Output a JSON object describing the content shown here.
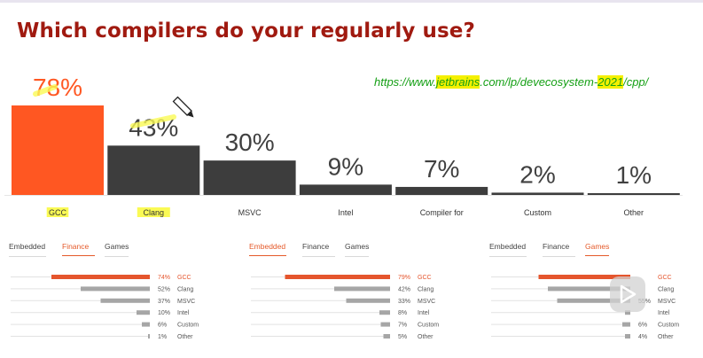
{
  "slide": {
    "title": "Which compilers do your regularly use?",
    "url_segments": [
      {
        "text": "https://www.",
        "hl": false
      },
      {
        "text": "jetbrains",
        "hl": true
      },
      {
        "text": ".com/lp/devecosystem-",
        "hl": false
      },
      {
        "text": "2021",
        "hl": true
      },
      {
        "text": "/cpp/",
        "hl": false
      }
    ]
  },
  "colors": {
    "accent": "#ff5722",
    "bar": "#3d3d3d",
    "mini_accent": "#e5552d",
    "mini_bar": "#a6a6a6",
    "highlight": "#fafa55",
    "title": "#a01a10",
    "link": "#16a016"
  },
  "chart_data": [
    {
      "type": "bar",
      "categories": [
        "GCC",
        "Clang",
        "MSVC",
        "Intel",
        "Compiler for",
        "Custom",
        "Other"
      ],
      "values": [
        78,
        43,
        30,
        9,
        7,
        2,
        1
      ],
      "value_labels": [
        "78%",
        "43%",
        "30%",
        "9%",
        "7%",
        "2%",
        "1%"
      ],
      "highlighted_labels": [
        "GCC",
        "Clang"
      ],
      "ylim": [
        0,
        78
      ]
    },
    {
      "type": "bar",
      "tabs": [
        "Embedded",
        "Finance",
        "Games"
      ],
      "active_tab": "Finance",
      "categories": [
        "GCC",
        "Clang",
        "MSVC",
        "Intel",
        "Custom",
        "Other"
      ],
      "values": [
        74,
        52,
        37,
        10,
        6,
        1
      ],
      "value_labels": [
        "74%",
        "52%",
        "37%",
        "10%",
        "6%",
        "1%"
      ]
    },
    {
      "type": "bar",
      "tabs": [
        "Embedded",
        "Finance",
        "Games"
      ],
      "active_tab": "Embedded",
      "categories": [
        "GCC",
        "Clang",
        "MSVC",
        "Intel",
        "Custom",
        "Other"
      ],
      "values": [
        79,
        42,
        33,
        8,
        7,
        5
      ],
      "value_labels": [
        "79%",
        "42%",
        "33%",
        "8%",
        "7%",
        "5%"
      ]
    },
    {
      "type": "bar",
      "tabs": [
        "Embedded",
        "Finance",
        "Games"
      ],
      "active_tab": "Games",
      "categories": [
        "GCC",
        "Clang",
        "MSVC",
        "Intel",
        "Custom",
        "Other"
      ],
      "values": [
        69,
        62,
        55,
        4,
        6,
        4
      ],
      "value_labels": [
        "",
        "",
        "55%",
        "",
        "6%",
        "4%"
      ]
    }
  ]
}
